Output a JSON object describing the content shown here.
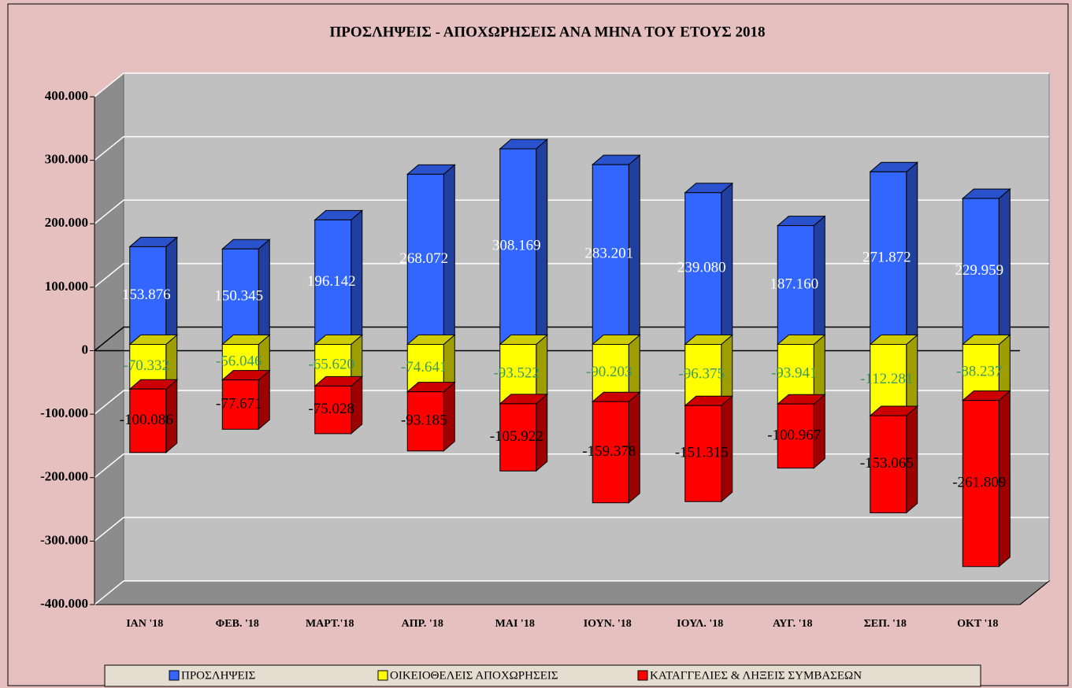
{
  "chart_data": {
    "type": "bar3d_stacked",
    "title": "ΠΡΟΣΛΗΨΕΙΣ - ΑΠΟΧΩΡΗΣΕΙΣ ΑΝΑ ΜΗΝΑ ΤΟΥ  ΕΤΟΥΣ  2018",
    "categories": [
      "ΙΑΝ  '18",
      "ΦΕΒ. '18",
      "ΜΑΡΤ.'18",
      "ΑΠΡ. '18",
      "ΜΑΙ  '18",
      "ΙΟΥΝ. '18",
      "ΙΟΥΛ. '18",
      "ΑΥΓ. '18",
      "ΣΕΠ. '18",
      "ΟΚΤ '18"
    ],
    "series": [
      {
        "name": "ΠΡΟΣΛΗΨΕΙΣ",
        "color": "#3366ff",
        "values": [
          153876,
          150345,
          196142,
          268072,
          308169,
          283201,
          239080,
          187160,
          271872,
          229959
        ],
        "value_labels": [
          "153.876",
          "150.345",
          "196.142",
          "268.072",
          "308.169",
          "283.201",
          "239.080",
          "187.160",
          "271.872",
          "229.959"
        ]
      },
      {
        "name": "ΟΙΚΕΙΟΘΕΛΕΙΣ ΑΠΟΧΩΡΗΣΕΙΣ",
        "color": "#ffff00",
        "values": [
          -70332,
          -56046,
          -65620,
          -74641,
          -93522,
          -90203,
          -96375,
          -93941,
          -112281,
          -88237
        ],
        "value_labels": [
          "-70.332",
          "-56.046",
          "-65.620",
          "-74.641",
          "-93.522",
          "-90.203",
          "-96.375",
          "-93.941",
          "-112.281",
          "-88.237"
        ]
      },
      {
        "name": "ΚΑΤΑΓΓΕΛΙΕΣ & ΛΗΞΕΙΣ ΣΥΜΒΑΣΕΩΝ",
        "color": "#ff0000",
        "values": [
          -100086,
          -77671,
          -75028,
          -93185,
          -105922,
          -159378,
          -151315,
          -100967,
          -153065,
          -261809
        ],
        "value_labels": [
          "-100.086",
          "-77.671",
          "-75.028",
          "-93.185",
          "-105.922",
          "-159.378",
          "-151.315",
          "-100.967",
          "-153.065",
          "-261.809"
        ]
      }
    ],
    "ylim": [
      -400000,
      400000
    ],
    "yticks": [
      {
        "value": -400000,
        "label": "-400.000"
      },
      {
        "value": -300000,
        "label": "-300.000"
      },
      {
        "value": -200000,
        "label": "-200.000"
      },
      {
        "value": -100000,
        "label": "-100.000"
      },
      0,
      {
        "value": 100000,
        "label": "100.000"
      },
      {
        "value": 200000,
        "label": "200.000"
      },
      {
        "value": 300000,
        "label": "300.000"
      },
      {
        "value": 400000,
        "label": "400.000"
      }
    ],
    "grid": true,
    "legend": "bottom"
  }
}
